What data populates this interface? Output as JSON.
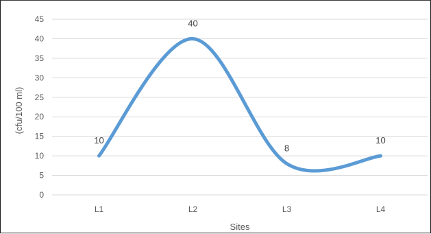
{
  "chart_data": {
    "type": "line",
    "smooth": true,
    "categories": [
      "L1",
      "L2",
      "L3",
      "L4"
    ],
    "series": [
      {
        "values": [
          10,
          40,
          8,
          10
        ],
        "color": "#5b9bd5"
      }
    ],
    "data_labels": [
      "10",
      "40",
      "8",
      "10"
    ],
    "xlabel": "Sites",
    "ylabel": "(cfu/100 ml)",
    "ylim": [
      0,
      45
    ],
    "ytick_step": 5,
    "grid": true,
    "gridline_color": "#d9d9d9",
    "legend": "none"
  }
}
